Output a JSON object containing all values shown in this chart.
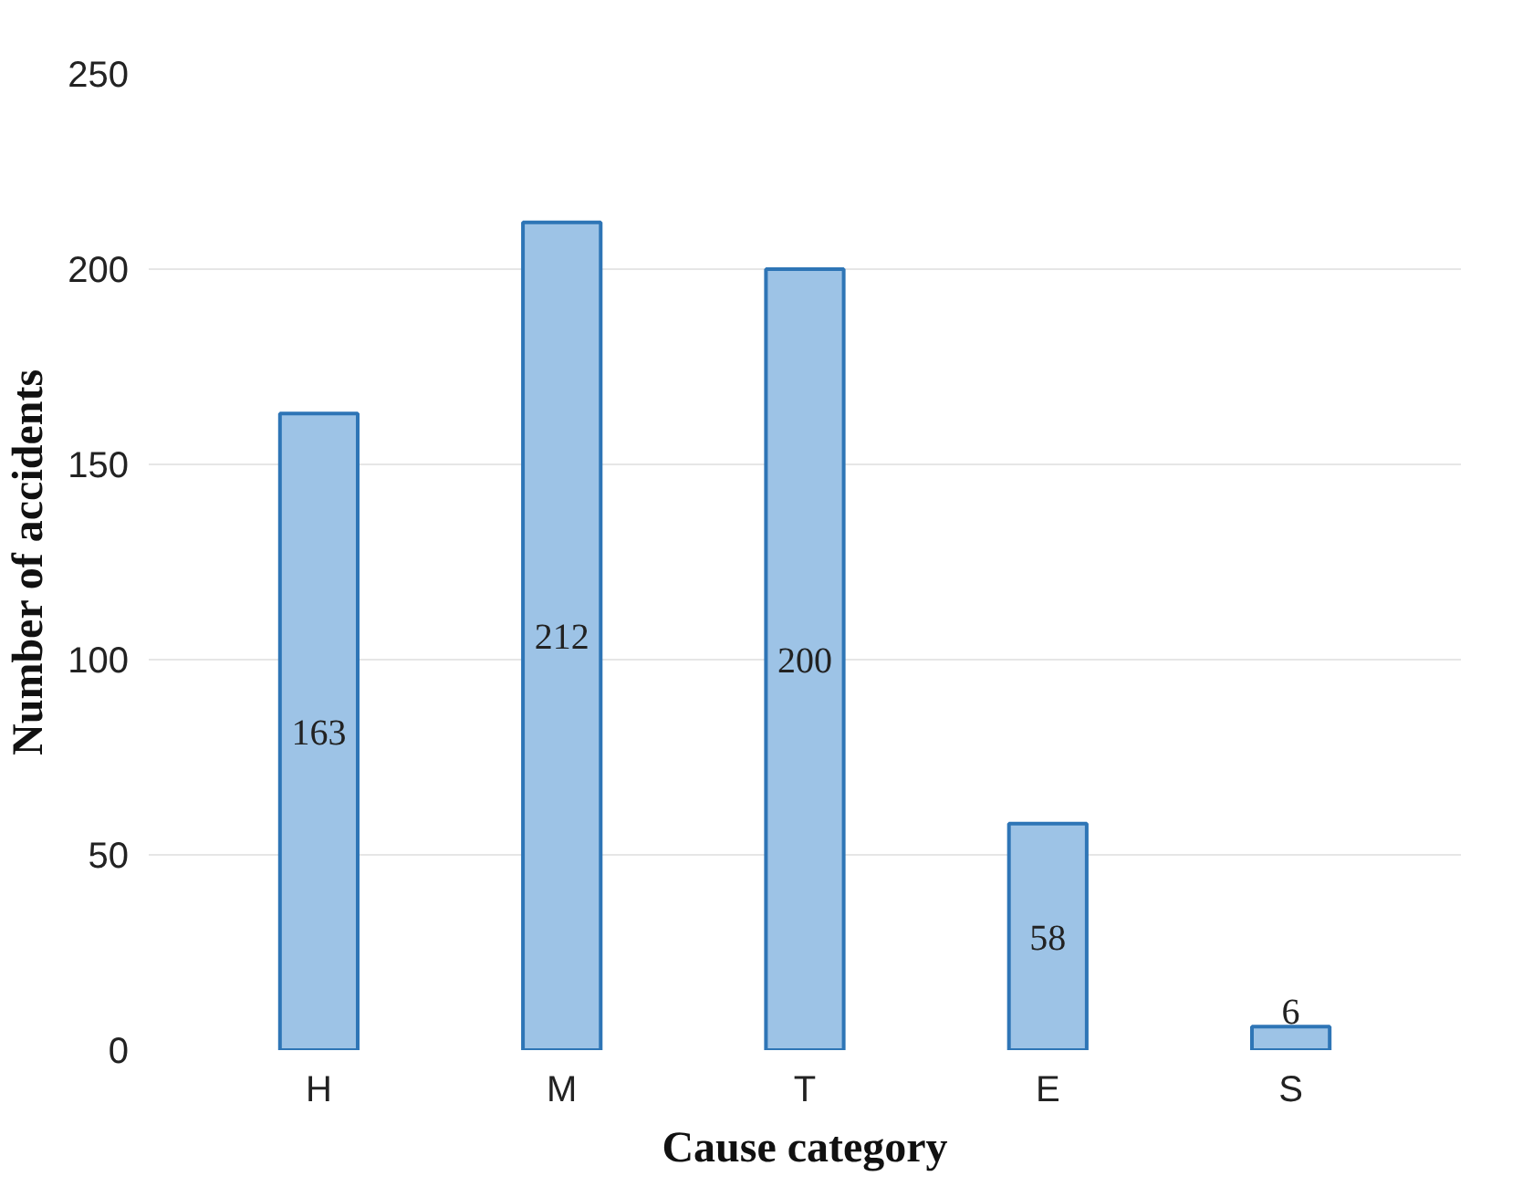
{
  "chart_data": {
    "type": "bar",
    "xlabel": "Cause category",
    "ylabel": "Number of accidents",
    "categories": [
      "H",
      "M",
      "T",
      "E",
      "S"
    ],
    "values": [
      163,
      212,
      200,
      58,
      6
    ],
    "color": "#9dc3e6",
    "ylim": [
      0,
      250
    ],
    "yticks": [
      0,
      50,
      100,
      150,
      200,
      250
    ],
    "grid": "y",
    "data_labels": true
  }
}
